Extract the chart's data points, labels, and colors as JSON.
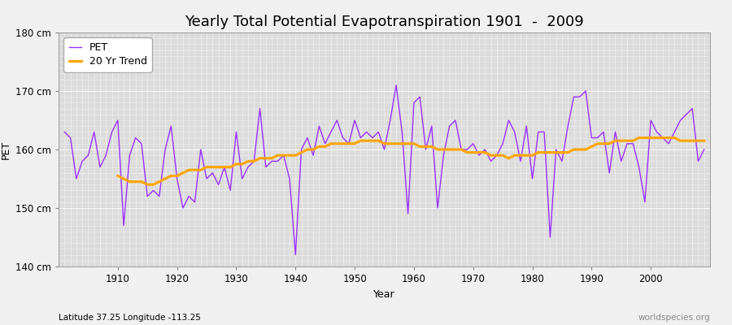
{
  "title": "Yearly Total Potential Evapotranspiration 1901  -  2009",
  "xlabel": "Year",
  "ylabel": "PET",
  "subtitle": "Latitude 37.25 Longitude -113.25",
  "watermark": "worldspecies.org",
  "years": [
    1901,
    1902,
    1903,
    1904,
    1905,
    1906,
    1907,
    1908,
    1909,
    1910,
    1911,
    1912,
    1913,
    1914,
    1915,
    1916,
    1917,
    1918,
    1919,
    1920,
    1921,
    1922,
    1923,
    1924,
    1925,
    1926,
    1927,
    1928,
    1929,
    1930,
    1931,
    1932,
    1933,
    1934,
    1935,
    1936,
    1937,
    1938,
    1939,
    1940,
    1941,
    1942,
    1943,
    1944,
    1945,
    1946,
    1947,
    1948,
    1949,
    1950,
    1951,
    1952,
    1953,
    1954,
    1955,
    1956,
    1957,
    1958,
    1959,
    1960,
    1961,
    1962,
    1963,
    1964,
    1965,
    1966,
    1967,
    1968,
    1969,
    1970,
    1971,
    1972,
    1973,
    1974,
    1975,
    1976,
    1977,
    1978,
    1979,
    1980,
    1981,
    1982,
    1983,
    1984,
    1985,
    1986,
    1987,
    1988,
    1989,
    1990,
    1991,
    1992,
    1993,
    1994,
    1995,
    1996,
    1997,
    1998,
    1999,
    2000,
    2001,
    2002,
    2003,
    2004,
    2005,
    2006,
    2007,
    2008,
    2009
  ],
  "pet": [
    163,
    162,
    155,
    158,
    159,
    163,
    157,
    159,
    163,
    165,
    147,
    159,
    162,
    161,
    152,
    153,
    152,
    160,
    164,
    155,
    150,
    152,
    151,
    160,
    155,
    156,
    154,
    157,
    153,
    163,
    155,
    157,
    158,
    167,
    157,
    158,
    158,
    159,
    155,
    142,
    160,
    162,
    159,
    164,
    161,
    163,
    165,
    162,
    161,
    165,
    162,
    163,
    162,
    163,
    160,
    165,
    171,
    163,
    149,
    168,
    169,
    160,
    164,
    150,
    159,
    164,
    165,
    160,
    160,
    161,
    159,
    160,
    158,
    159,
    161,
    165,
    163,
    158,
    164,
    155,
    163,
    163,
    145,
    160,
    158,
    164,
    169,
    169,
    170,
    162,
    162,
    163,
    156,
    163,
    158,
    161,
    161,
    157,
    151,
    165,
    163,
    162,
    161,
    163,
    165,
    166,
    167,
    158,
    160
  ],
  "trend_years": [
    1910,
    1911,
    1912,
    1913,
    1914,
    1915,
    1916,
    1917,
    1918,
    1919,
    1920,
    1921,
    1922,
    1923,
    1924,
    1925,
    1926,
    1927,
    1928,
    1929,
    1930,
    1931,
    1932,
    1933,
    1934,
    1935,
    1936,
    1937,
    1938,
    1939,
    1940,
    1941,
    1942,
    1943,
    1944,
    1945,
    1946,
    1947,
    1948,
    1949,
    1950,
    1951,
    1952,
    1953,
    1954,
    1955,
    1956,
    1957,
    1958,
    1959,
    1960,
    1961,
    1962,
    1963,
    1964,
    1965,
    1966,
    1967,
    1968,
    1969,
    1970,
    1971,
    1972,
    1973,
    1974,
    1975,
    1976,
    1977,
    1978,
    1979,
    1980,
    1981,
    1982,
    1983,
    1984,
    1985,
    1986,
    1987,
    1988,
    1989,
    1990,
    1991,
    1992,
    1993,
    1994,
    1995,
    1996,
    1997,
    1998,
    1999,
    2000,
    2001,
    2002,
    2003,
    2004,
    2005,
    2006,
    2007,
    2008,
    2009
  ],
  "trend": [
    155.5,
    155.0,
    154.5,
    154.5,
    154.5,
    154.0,
    154.0,
    154.5,
    155.0,
    155.5,
    155.5,
    156.0,
    156.5,
    156.5,
    156.5,
    157.0,
    157.0,
    157.0,
    157.0,
    157.0,
    157.5,
    157.5,
    158.0,
    158.0,
    158.5,
    158.5,
    158.5,
    159.0,
    159.0,
    159.0,
    159.0,
    159.5,
    160.0,
    160.0,
    160.5,
    160.5,
    161.0,
    161.0,
    161.0,
    161.0,
    161.0,
    161.5,
    161.5,
    161.5,
    161.5,
    161.0,
    161.0,
    161.0,
    161.0,
    161.0,
    161.0,
    160.5,
    160.5,
    160.5,
    160.0,
    160.0,
    160.0,
    160.0,
    160.0,
    159.5,
    159.5,
    159.5,
    159.5,
    159.0,
    159.0,
    159.0,
    158.5,
    159.0,
    159.0,
    159.0,
    159.0,
    159.5,
    159.5,
    159.5,
    159.5,
    159.5,
    159.5,
    160.0,
    160.0,
    160.0,
    160.5,
    161.0,
    161.0,
    161.0,
    161.5,
    161.5,
    161.5,
    161.5,
    162.0,
    162.0,
    162.0,
    162.0,
    162.0,
    162.0,
    162.0,
    161.5,
    161.5,
    161.5,
    161.5,
    161.5
  ],
  "pet_color": "#9B30FF",
  "trend_color": "#FFA500",
  "bg_color": "#F0F0F0",
  "plot_bg_color": "#DCDCDC",
  "ylim": [
    140,
    180
  ],
  "yticks": [
    140,
    150,
    160,
    170,
    180
  ],
  "xlim": [
    1900,
    2010
  ],
  "xticks": [
    1910,
    1920,
    1930,
    1940,
    1950,
    1960,
    1970,
    1980,
    1990,
    2000
  ],
  "title_fontsize": 13,
  "label_fontsize": 9,
  "tick_fontsize": 8.5
}
